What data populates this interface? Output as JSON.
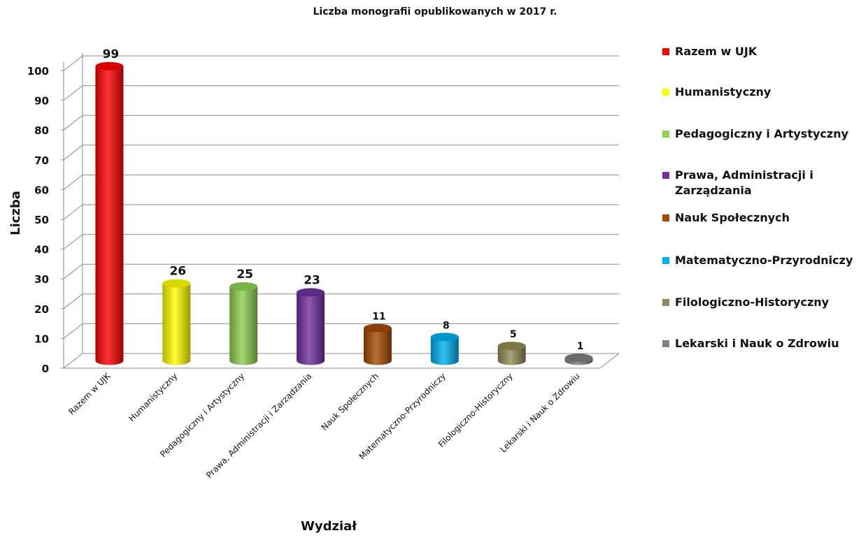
{
  "chart_data": {
    "type": "bar",
    "title": "Liczba monografii opublikowanych w 2017 r.",
    "xlabel": "Wydział",
    "ylabel": "Liczba",
    "categories": [
      "Razem w UJK",
      "Humanistyczny",
      "Pedagogiczny i Artystyczny",
      "Prawa, Administracji i Zarządzania",
      "Nauk Społecznych",
      "Matematyczno-Przyrodniczy",
      "Filologiczno-Historyczny",
      "Lekarski i Nauk o Zdrowiu"
    ],
    "values": [
      99,
      26,
      25,
      23,
      11,
      8,
      5,
      1
    ],
    "data_labels": [
      "99",
      "26",
      "25",
      "23",
      "11",
      "8",
      "5",
      "1"
    ],
    "colors": [
      "#ff0000",
      "#ffff00",
      "#8fd14f",
      "#7030a0",
      "#a54a00",
      "#00b0f0",
      "#948a54",
      "#7f7f7f"
    ],
    "ylim": [
      0,
      100
    ],
    "yticks": [
      "0",
      "10",
      "20",
      "30",
      "40",
      "50",
      "60",
      "70",
      "80",
      "90",
      "100"
    ],
    "grid": true,
    "legend_position": "right",
    "legend": [
      "Razem w UJK",
      "Humanistyczny",
      "Pedagogiczny i Artystyczny",
      "Prawa, Administracji i Zarządzania",
      "Nauk Społecznych",
      "Matematyczno-Przyrodniczy",
      "Filologiczno-Historyczny",
      "Lekarski i Nauk o Zdrowiu"
    ]
  }
}
